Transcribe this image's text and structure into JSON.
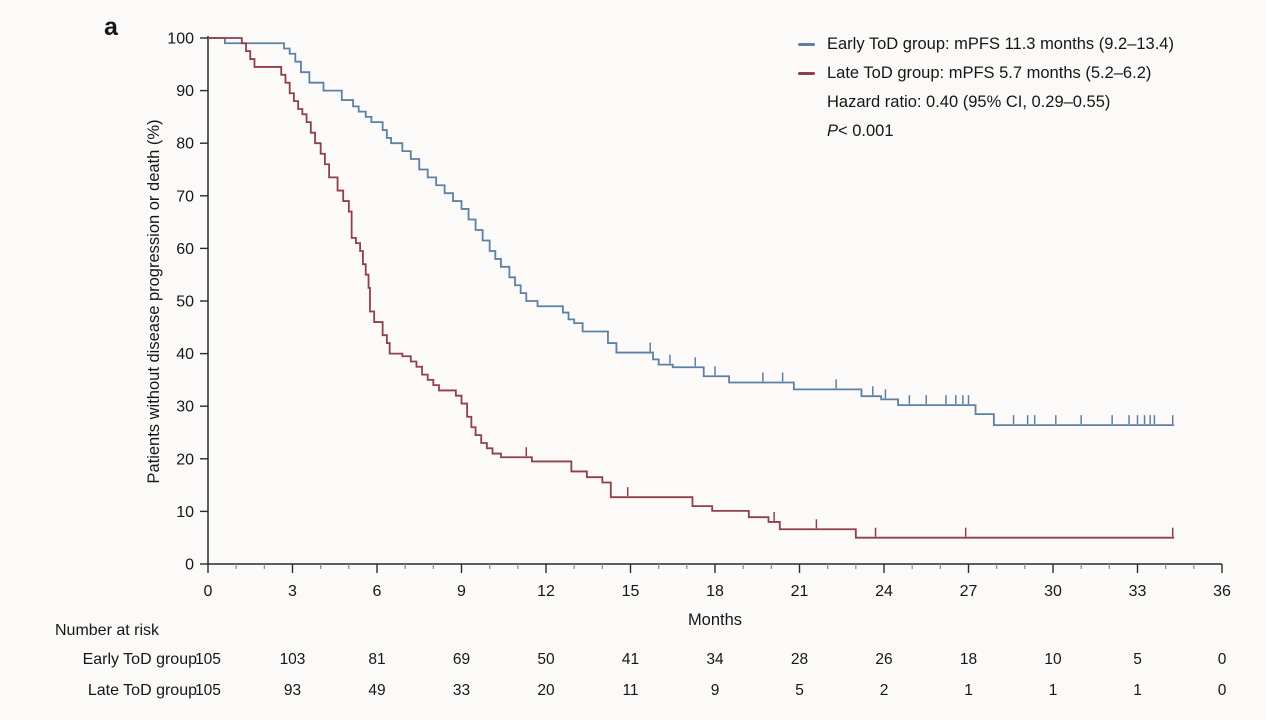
{
  "figure": {
    "panel_label": "a"
  },
  "legend": {
    "entries": [
      {
        "label": "Early ToD group: mPFS 11.3 months (9.2–13.4)",
        "color": "#5d80a6"
      },
      {
        "label": "Late ToD group: mPFS 5.7 months (5.2–6.2)",
        "color": "#8e3f4a"
      }
    ],
    "hazard_line": "Hazard ratio: 0.40 (95% CI, 0.29–0.55)",
    "p_label": "P",
    "p_rest": " < 0.001"
  },
  "chart_data": {
    "type": "line",
    "subtype": "kaplan-meier-step",
    "title": "",
    "xlabel": "Months",
    "ylabel": "Patients without disease progression or death (%)",
    "xlim": [
      0,
      36
    ],
    "ylim": [
      0,
      100
    ],
    "x_major_ticks": [
      0,
      3,
      6,
      9,
      12,
      15,
      18,
      21,
      24,
      27,
      30,
      33,
      36
    ],
    "x_minor_tick_step": 1,
    "y_ticks": [
      0,
      10,
      20,
      30,
      40,
      50,
      60,
      70,
      80,
      90,
      100
    ],
    "grid": false,
    "legend_position": "top-right",
    "series": [
      {
        "name": "Early ToD group",
        "color": "#5d80a6",
        "median_pfs": "11.3 months (9.2–13.4)",
        "end_time": 34.3,
        "steps": [
          [
            0,
            100
          ],
          [
            0.6,
            99
          ],
          [
            2.7,
            98
          ],
          [
            2.9,
            97
          ],
          [
            3.1,
            95.5
          ],
          [
            3.3,
            93.5
          ],
          [
            3.6,
            91.5
          ],
          [
            4.1,
            90
          ],
          [
            4.75,
            88.2
          ],
          [
            5.15,
            87
          ],
          [
            5.35,
            86
          ],
          [
            5.6,
            85
          ],
          [
            5.8,
            84
          ],
          [
            6.2,
            82.5
          ],
          [
            6.35,
            81
          ],
          [
            6.5,
            80
          ],
          [
            6.9,
            78.5
          ],
          [
            7.2,
            77
          ],
          [
            7.5,
            75
          ],
          [
            7.8,
            73.5
          ],
          [
            8.1,
            72
          ],
          [
            8.4,
            70.5
          ],
          [
            8.7,
            69
          ],
          [
            9.0,
            67.5
          ],
          [
            9.25,
            65.5
          ],
          [
            9.5,
            63.5
          ],
          [
            9.75,
            61.5
          ],
          [
            10.0,
            59.5
          ],
          [
            10.2,
            58
          ],
          [
            10.4,
            56.5
          ],
          [
            10.7,
            54.5
          ],
          [
            10.9,
            53
          ],
          [
            11.1,
            51.5
          ],
          [
            11.3,
            50
          ],
          [
            11.7,
            49
          ],
          [
            12.6,
            47.8
          ],
          [
            12.8,
            46.5
          ],
          [
            13.0,
            45.8
          ],
          [
            13.3,
            44.2
          ],
          [
            14.2,
            42
          ],
          [
            14.5,
            40.2
          ],
          [
            15.8,
            38.9
          ],
          [
            16.0,
            37.9
          ],
          [
            16.5,
            37.4
          ],
          [
            17.6,
            35.7
          ],
          [
            18.5,
            34.5
          ],
          [
            20.8,
            33.2
          ],
          [
            23.2,
            31.9
          ],
          [
            23.9,
            31.3
          ],
          [
            24.5,
            30.2
          ],
          [
            27.25,
            28.5
          ],
          [
            27.9,
            26.4
          ]
        ],
        "censor_times": [
          15.7,
          16.4,
          17.3,
          18.0,
          19.7,
          20.4,
          22.3,
          23.6,
          24.05,
          24.9,
          25.5,
          26.2,
          26.55,
          26.8,
          27.0,
          28.6,
          29.1,
          29.35,
          30.1,
          31.0,
          32.1,
          32.7,
          33.0,
          33.25,
          33.45,
          33.6,
          34.25
        ]
      },
      {
        "name": "Late ToD group",
        "color": "#8e3f4a",
        "median_pfs": "5.7 months (5.2–6.2)",
        "end_time": 34.3,
        "steps": [
          [
            0,
            100
          ],
          [
            1.2,
            99
          ],
          [
            1.35,
            97.5
          ],
          [
            1.5,
            96
          ],
          [
            1.65,
            94.5
          ],
          [
            2.6,
            93
          ],
          [
            2.75,
            91.5
          ],
          [
            2.9,
            89.5
          ],
          [
            3.05,
            88
          ],
          [
            3.2,
            86.5
          ],
          [
            3.35,
            85.5
          ],
          [
            3.5,
            84
          ],
          [
            3.65,
            82
          ],
          [
            3.8,
            80
          ],
          [
            4.0,
            78
          ],
          [
            4.15,
            76
          ],
          [
            4.3,
            73.5
          ],
          [
            4.6,
            71
          ],
          [
            4.8,
            69
          ],
          [
            5.0,
            67
          ],
          [
            5.1,
            62
          ],
          [
            5.25,
            61
          ],
          [
            5.4,
            59.5
          ],
          [
            5.5,
            57
          ],
          [
            5.6,
            55
          ],
          [
            5.7,
            52.5
          ],
          [
            5.75,
            48
          ],
          [
            5.9,
            46
          ],
          [
            6.2,
            43.5
          ],
          [
            6.35,
            42
          ],
          [
            6.45,
            40
          ],
          [
            6.9,
            39.5
          ],
          [
            7.2,
            38.5
          ],
          [
            7.4,
            37.5
          ],
          [
            7.6,
            36
          ],
          [
            7.8,
            35
          ],
          [
            8.0,
            34
          ],
          [
            8.2,
            33
          ],
          [
            8.8,
            32
          ],
          [
            9.0,
            30.5
          ],
          [
            9.2,
            28
          ],
          [
            9.35,
            26
          ],
          [
            9.5,
            24.5
          ],
          [
            9.7,
            23
          ],
          [
            9.9,
            22
          ],
          [
            10.1,
            21
          ],
          [
            10.4,
            20.3
          ],
          [
            11.5,
            19.5
          ],
          [
            12.9,
            17.6
          ],
          [
            13.45,
            16.5
          ],
          [
            14.0,
            15.5
          ],
          [
            14.3,
            12.7
          ],
          [
            17.2,
            11
          ],
          [
            17.9,
            10.1
          ],
          [
            19.2,
            8.9
          ],
          [
            19.9,
            8
          ],
          [
            20.3,
            6.6
          ],
          [
            23.0,
            5.0
          ]
        ],
        "censor_times": [
          11.3,
          14.9,
          20.1,
          21.6,
          23.7,
          26.9,
          34.25
        ]
      }
    ],
    "stats": {
      "hazard_ratio": "0.40 (95% CI, 0.29–0.55)",
      "p_value": "P < 0.001"
    }
  },
  "risk_table": {
    "heading": "Number at risk",
    "months": [
      0,
      3,
      6,
      9,
      12,
      15,
      18,
      21,
      24,
      27,
      30,
      33,
      36
    ],
    "rows": [
      {
        "label": "Early ToD group",
        "values": [
          105,
          103,
          81,
          69,
          50,
          41,
          34,
          28,
          26,
          18,
          10,
          5,
          0
        ]
      },
      {
        "label": "Late ToD group",
        "values": [
          105,
          93,
          49,
          33,
          20,
          11,
          9,
          5,
          2,
          1,
          1,
          1,
          0
        ]
      }
    ]
  }
}
